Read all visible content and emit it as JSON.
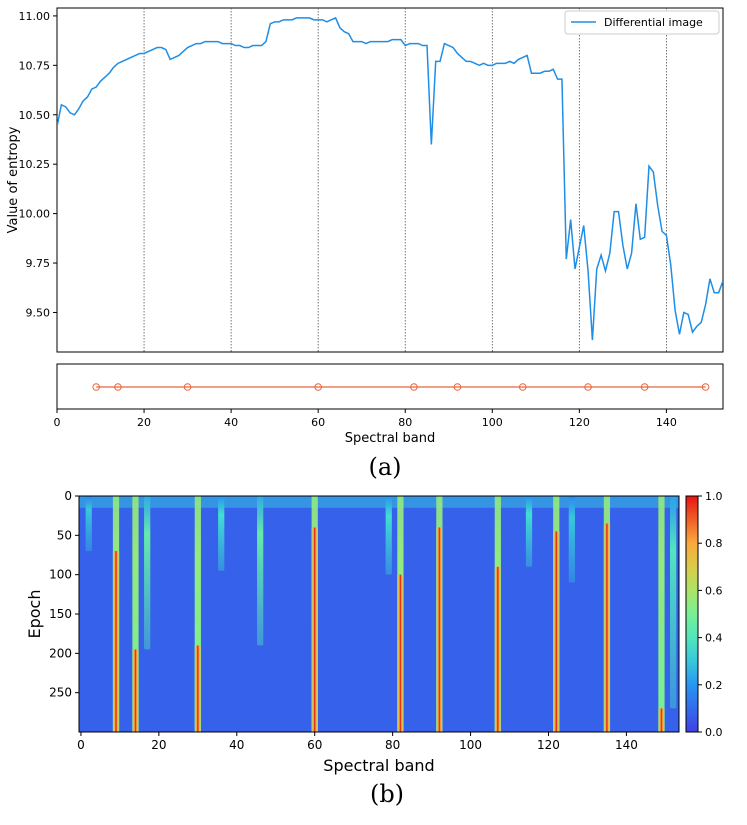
{
  "chart_data": [
    {
      "type": "line",
      "panel_label": "(a)",
      "xlabel": "Spectral band",
      "ylabel": "Value of entropy",
      "xlim": [
        0,
        153
      ],
      "ylim": [
        9.3,
        11.04
      ],
      "x_ticks": [
        0,
        20,
        40,
        60,
        80,
        100,
        120,
        140
      ],
      "x_tick_labels": [
        "0",
        "20",
        "40",
        "60",
        "80",
        "100",
        "120",
        "140"
      ],
      "y_ticks": [
        9.5,
        9.75,
        10.0,
        10.25,
        10.5,
        10.75,
        11.0
      ],
      "y_tick_labels": [
        "9.50",
        "9.75",
        "10.00",
        "10.25",
        "10.50",
        "10.75",
        "11.00"
      ],
      "vertical_gridlines_at": [
        20,
        40,
        60,
        80,
        100,
        120,
        140
      ],
      "legend_position": "top-right",
      "series": [
        {
          "name": "Differential image",
          "color": "#1f8ee6",
          "points": [
            [
              0,
              10.44
            ],
            [
              1,
              10.55
            ],
            [
              2,
              10.54
            ],
            [
              3,
              10.51
            ],
            [
              4,
              10.5
            ],
            [
              5,
              10.53
            ],
            [
              6,
              10.57
            ],
            [
              7,
              10.59
            ],
            [
              8,
              10.63
            ],
            [
              9,
              10.64
            ],
            [
              10,
              10.67
            ],
            [
              11,
              10.69
            ],
            [
              12,
              10.71
            ],
            [
              13,
              10.74
            ],
            [
              14,
              10.76
            ],
            [
              15,
              10.77
            ],
            [
              16,
              10.78
            ],
            [
              17,
              10.79
            ],
            [
              18,
              10.8
            ],
            [
              19,
              10.81
            ],
            [
              20,
              10.81
            ],
            [
              21,
              10.82
            ],
            [
              22,
              10.83
            ],
            [
              23,
              10.84
            ],
            [
              24,
              10.84
            ],
            [
              25,
              10.83
            ],
            [
              26,
              10.78
            ],
            [
              27,
              10.79
            ],
            [
              28,
              10.8
            ],
            [
              29,
              10.82
            ],
            [
              30,
              10.84
            ],
            [
              31,
              10.85
            ],
            [
              32,
              10.86
            ],
            [
              33,
              10.86
            ],
            [
              34,
              10.87
            ],
            [
              35,
              10.87
            ],
            [
              36,
              10.87
            ],
            [
              37,
              10.87
            ],
            [
              38,
              10.86
            ],
            [
              39,
              10.86
            ],
            [
              40,
              10.86
            ],
            [
              41,
              10.85
            ],
            [
              42,
              10.85
            ],
            [
              43,
              10.84
            ],
            [
              44,
              10.84
            ],
            [
              45,
              10.85
            ],
            [
              46,
              10.85
            ],
            [
              47,
              10.85
            ],
            [
              48,
              10.87
            ],
            [
              49,
              10.96
            ],
            [
              50,
              10.97
            ],
            [
              51,
              10.97
            ],
            [
              52,
              10.98
            ],
            [
              53,
              10.98
            ],
            [
              54,
              10.98
            ],
            [
              55,
              10.99
            ],
            [
              56,
              10.99
            ],
            [
              57,
              10.99
            ],
            [
              58,
              10.99
            ],
            [
              59,
              10.98
            ],
            [
              60,
              10.98
            ],
            [
              61,
              10.98
            ],
            [
              62,
              10.97
            ],
            [
              63,
              10.98
            ],
            [
              64,
              10.99
            ],
            [
              65,
              10.94
            ],
            [
              66,
              10.92
            ],
            [
              67,
              10.91
            ],
            [
              68,
              10.87
            ],
            [
              69,
              10.87
            ],
            [
              70,
              10.87
            ],
            [
              71,
              10.86
            ],
            [
              72,
              10.87
            ],
            [
              73,
              10.87
            ],
            [
              74,
              10.87
            ],
            [
              75,
              10.87
            ],
            [
              76,
              10.87
            ],
            [
              77,
              10.88
            ],
            [
              78,
              10.88
            ],
            [
              79,
              10.88
            ],
            [
              80,
              10.85
            ],
            [
              81,
              10.86
            ],
            [
              82,
              10.86
            ],
            [
              83,
              10.86
            ],
            [
              84,
              10.85
            ],
            [
              85,
              10.85
            ],
            [
              86,
              10.35
            ],
            [
              87,
              10.77
            ],
            [
              88,
              10.77
            ],
            [
              89,
              10.86
            ],
            [
              90,
              10.85
            ],
            [
              91,
              10.84
            ],
            [
              92,
              10.81
            ],
            [
              93,
              10.79
            ],
            [
              94,
              10.77
            ],
            [
              95,
              10.77
            ],
            [
              96,
              10.76
            ],
            [
              97,
              10.75
            ],
            [
              98,
              10.76
            ],
            [
              99,
              10.75
            ],
            [
              100,
              10.75
            ],
            [
              101,
              10.76
            ],
            [
              102,
              10.76
            ],
            [
              103,
              10.76
            ],
            [
              104,
              10.77
            ],
            [
              105,
              10.76
            ],
            [
              106,
              10.78
            ],
            [
              107,
              10.79
            ],
            [
              108,
              10.8
            ],
            [
              109,
              10.71
            ],
            [
              110,
              10.71
            ],
            [
              111,
              10.71
            ],
            [
              112,
              10.72
            ],
            [
              113,
              10.72
            ],
            [
              114,
              10.73
            ],
            [
              115,
              10.68
            ],
            [
              116,
              10.68
            ],
            [
              117,
              9.77
            ],
            [
              118,
              9.97
            ],
            [
              119,
              9.72
            ],
            [
              120,
              9.83
            ],
            [
              121,
              9.94
            ],
            [
              122,
              9.71
            ],
            [
              123,
              9.36
            ],
            [
              124,
              9.72
            ],
            [
              125,
              9.79
            ],
            [
              126,
              9.71
            ],
            [
              127,
              9.8
            ],
            [
              128,
              10.01
            ],
            [
              129,
              10.01
            ],
            [
              130,
              9.84
            ],
            [
              131,
              9.72
            ],
            [
              132,
              9.8
            ],
            [
              133,
              10.05
            ],
            [
              134,
              9.87
            ],
            [
              135,
              9.88
            ],
            [
              136,
              10.24
            ],
            [
              137,
              10.21
            ],
            [
              138,
              10.04
            ],
            [
              139,
              9.91
            ],
            [
              140,
              9.89
            ],
            [
              141,
              9.74
            ],
            [
              142,
              9.51
            ],
            [
              143,
              9.39
            ],
            [
              144,
              9.5
            ],
            [
              145,
              9.49
            ],
            [
              146,
              9.4
            ],
            [
              147,
              9.43
            ],
            [
              148,
              9.45
            ],
            [
              149,
              9.54
            ],
            [
              150,
              9.67
            ],
            [
              151,
              9.6
            ],
            [
              152,
              9.6
            ],
            [
              153,
              9.66
            ]
          ]
        }
      ]
    },
    {
      "type": "scatter",
      "panel_label": "",
      "xlabel": "Spectral band",
      "xlim": [
        0,
        153
      ],
      "x_ticks": [
        0,
        20,
        40,
        60,
        80,
        100,
        120,
        140
      ],
      "x_tick_labels": [
        "0",
        "20",
        "40",
        "60",
        "80",
        "100",
        "120",
        "140"
      ],
      "series": [
        {
          "color": "#e8643c",
          "x": [
            9,
            14,
            30,
            60,
            82,
            92,
            107,
            122,
            135,
            149
          ]
        }
      ]
    },
    {
      "type": "heatmap",
      "panel_label": "(b)",
      "xlabel": "Spectral band",
      "ylabel": "Epoch",
      "xlim": [
        -0.5,
        153.5
      ],
      "ylim": [
        300,
        0
      ],
      "x_ticks": [
        0,
        20,
        40,
        60,
        80,
        100,
        120,
        140
      ],
      "x_tick_labels": [
        "0",
        "20",
        "40",
        "60",
        "80",
        "100",
        "120",
        "140"
      ],
      "y_ticks": [
        0,
        50,
        100,
        150,
        200,
        250
      ],
      "y_tick_labels": [
        "0",
        "50",
        "100",
        "150",
        "200",
        "250"
      ],
      "colorbar": {
        "range": [
          0.0,
          1.0
        ],
        "ticks": [
          0.0,
          0.2,
          0.4,
          0.6,
          0.8,
          1.0
        ],
        "tick_labels": [
          "0.0",
          "0.2",
          "0.4",
          "0.6",
          "0.8",
          "1.0"
        ],
        "colormap": "rainbow"
      },
      "background_value": 0.08,
      "top_band_value": 0.28,
      "top_band_epochs": [
        0,
        15
      ],
      "columns": [
        {
          "band": 9,
          "peak": 1.0,
          "red_from_epoch": 70,
          "fade_to_epoch": 300
        },
        {
          "band": 14,
          "peak": 1.0,
          "red_from_epoch": 195,
          "fade_to_epoch": 300
        },
        {
          "band": 17,
          "peak": 0.45,
          "red_from_epoch": null,
          "fade_to_epoch": 195
        },
        {
          "band": 30,
          "peak": 1.0,
          "red_from_epoch": 190,
          "fade_to_epoch": 300
        },
        {
          "band": 36,
          "peak": 0.35,
          "red_from_epoch": null,
          "fade_to_epoch": 95
        },
        {
          "band": 46,
          "peak": 0.45,
          "red_from_epoch": null,
          "fade_to_epoch": 190
        },
        {
          "band": 60,
          "peak": 1.0,
          "red_from_epoch": 40,
          "fade_to_epoch": 300
        },
        {
          "band": 79,
          "peak": 0.35,
          "red_from_epoch": null,
          "fade_to_epoch": 100
        },
        {
          "band": 82,
          "peak": 1.0,
          "red_from_epoch": 100,
          "fade_to_epoch": 300
        },
        {
          "band": 92,
          "peak": 1.0,
          "red_from_epoch": 40,
          "fade_to_epoch": 300
        },
        {
          "band": 107,
          "peak": 1.0,
          "red_from_epoch": 90,
          "fade_to_epoch": 300
        },
        {
          "band": 115,
          "peak": 0.35,
          "red_from_epoch": null,
          "fade_to_epoch": 90
        },
        {
          "band": 122,
          "peak": 1.0,
          "red_from_epoch": 45,
          "fade_to_epoch": 300
        },
        {
          "band": 126,
          "peak": 0.3,
          "red_from_epoch": null,
          "fade_to_epoch": 110
        },
        {
          "band": 135,
          "peak": 1.0,
          "red_from_epoch": 35,
          "fade_to_epoch": 300
        },
        {
          "band": 149,
          "peak": 1.0,
          "red_from_epoch": 270,
          "fade_to_epoch": 300
        },
        {
          "band": 152,
          "peak": 0.4,
          "red_from_epoch": null,
          "fade_to_epoch": 270
        },
        {
          "band": 2,
          "peak": 0.3,
          "red_from_epoch": null,
          "fade_to_epoch": 70
        }
      ]
    }
  ]
}
